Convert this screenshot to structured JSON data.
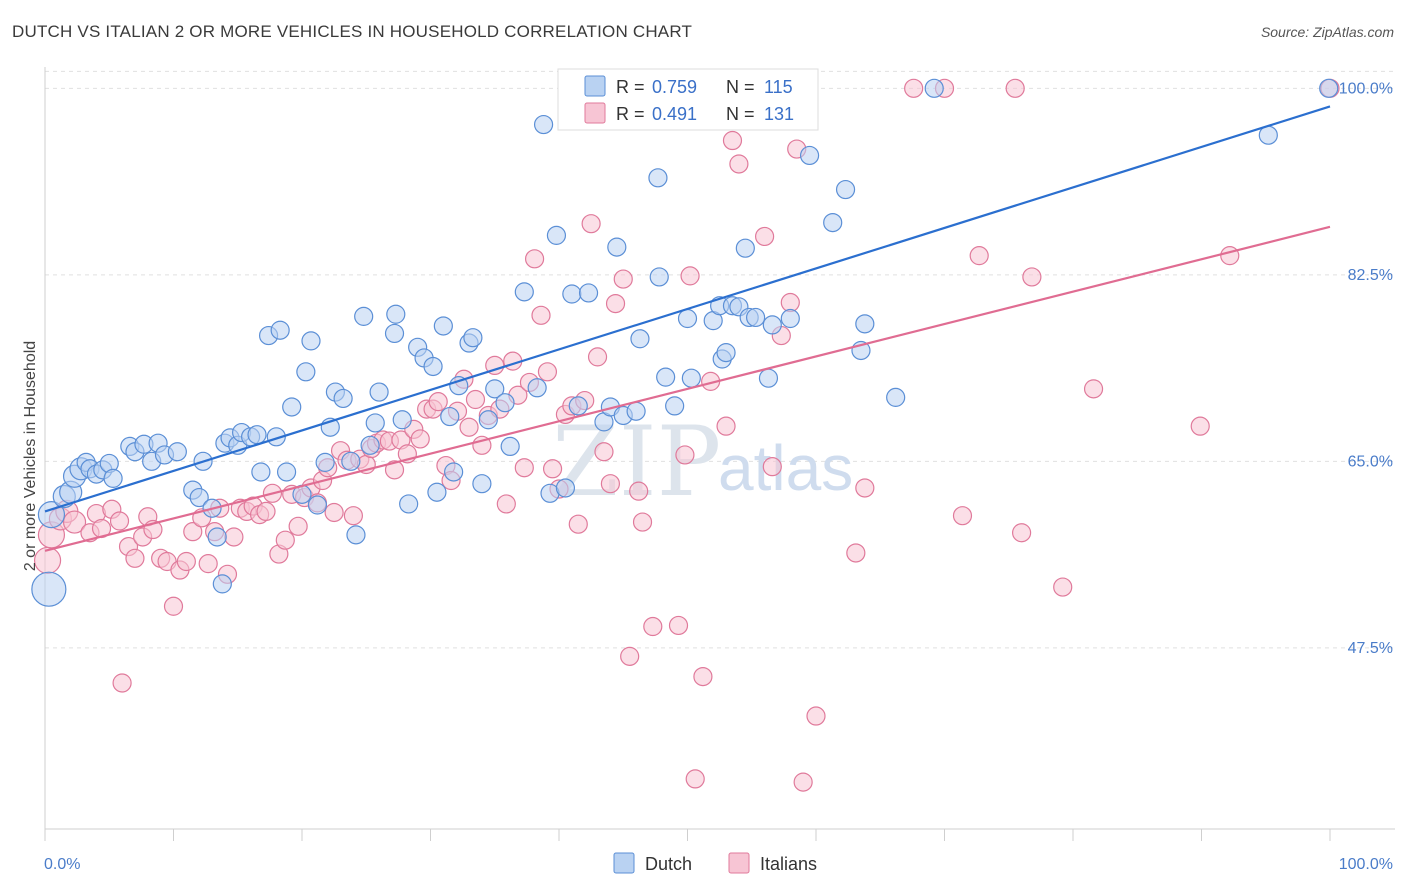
{
  "header": {
    "title": "DUTCH VS ITALIAN 2 OR MORE VEHICLES IN HOUSEHOLD CORRELATION CHART",
    "source": "Source: ZipAtlas.com"
  },
  "legend_top": {
    "rows": [
      {
        "r_label": "R =",
        "r_value": "0.759",
        "n_label": "N =",
        "n_value": "115"
      },
      {
        "r_label": "R =",
        "r_value": "0.491",
        "n_label": "N =",
        "n_value": "131"
      }
    ]
  },
  "legend_bottom": {
    "items": [
      "Dutch",
      "Italians"
    ]
  },
  "watermark": {
    "part1": "ZIP",
    "part2": "atlas"
  },
  "colors": {
    "dutch_fill": "#b9d2f2",
    "dutch_stroke": "#5b8fd6",
    "dutch_line": "#2b6fcf",
    "italian_fill": "#f7c5d4",
    "italian_stroke": "#e07a9b",
    "italian_line": "#e06c92",
    "grid": "#e0e0e0",
    "tick_text": "#4a7cc9"
  },
  "chart_data": {
    "type": "scatter",
    "title": "DUTCH VS ITALIAN 2 OR MORE VEHICLES IN HOUSEHOLD CORRELATION CHART",
    "xlabel": "",
    "ylabel": "2 or more Vehicles in Household",
    "xlim": [
      0,
      100
    ],
    "ylim": [
      30.5,
      102
    ],
    "x_tick_labels": [
      "0.0%",
      "100.0%"
    ],
    "y_ticks": [
      47.5,
      65.0,
      82.5,
      100.0
    ],
    "y_tick_labels": [
      "47.5%",
      "65.0%",
      "82.5%",
      "100.0%"
    ],
    "grid": true,
    "legend_position": "top-center",
    "series": [
      {
        "name": "Dutch",
        "r": 0.759,
        "n": 115,
        "trend": {
          "x": [
            0,
            100
          ],
          "y": [
            60.3,
            98.3
          ]
        },
        "points": [
          [
            0.3,
            53.0
          ],
          [
            0.5,
            60.0
          ],
          [
            1.5,
            61.7
          ],
          [
            2.0,
            62.1
          ],
          [
            2.3,
            63.6
          ],
          [
            2.8,
            64.3
          ],
          [
            3.2,
            64.9
          ],
          [
            3.5,
            64.3
          ],
          [
            4.0,
            63.8
          ],
          [
            4.5,
            64.2
          ],
          [
            5.0,
            64.8
          ],
          [
            5.3,
            63.4
          ],
          [
            6.6,
            66.4
          ],
          [
            7.0,
            65.9
          ],
          [
            7.7,
            66.6
          ],
          [
            8.3,
            65.0
          ],
          [
            8.8,
            66.7
          ],
          [
            9.3,
            65.6
          ],
          [
            10.3,
            65.9
          ],
          [
            11.5,
            62.3
          ],
          [
            12.0,
            61.6
          ],
          [
            12.3,
            65.0
          ],
          [
            13.0,
            60.6
          ],
          [
            13.4,
            57.9
          ],
          [
            13.8,
            53.5
          ],
          [
            14.0,
            66.7
          ],
          [
            14.4,
            67.2
          ],
          [
            15.0,
            66.5
          ],
          [
            15.3,
            67.7
          ],
          [
            16.0,
            67.3
          ],
          [
            16.5,
            67.5
          ],
          [
            16.8,
            64.0
          ],
          [
            17.4,
            76.8
          ],
          [
            18.0,
            67.3
          ],
          [
            18.3,
            77.3
          ],
          [
            18.8,
            64.0
          ],
          [
            19.2,
            70.1
          ],
          [
            20.0,
            61.9
          ],
          [
            20.3,
            73.4
          ],
          [
            20.7,
            76.3
          ],
          [
            21.2,
            60.9
          ],
          [
            21.8,
            64.9
          ],
          [
            22.2,
            68.2
          ],
          [
            22.6,
            71.5
          ],
          [
            23.2,
            70.9
          ],
          [
            23.8,
            65.0
          ],
          [
            24.2,
            58.1
          ],
          [
            24.8,
            78.6
          ],
          [
            25.3,
            66.5
          ],
          [
            25.7,
            68.6
          ],
          [
            26.0,
            71.5
          ],
          [
            27.2,
            77.0
          ],
          [
            27.3,
            78.8
          ],
          [
            27.8,
            68.9
          ],
          [
            28.3,
            61.0
          ],
          [
            29.0,
            75.7
          ],
          [
            29.5,
            74.7
          ],
          [
            30.2,
            73.9
          ],
          [
            30.5,
            62.1
          ],
          [
            31.0,
            77.7
          ],
          [
            31.5,
            69.2
          ],
          [
            31.8,
            64.0
          ],
          [
            32.2,
            72.1
          ],
          [
            33.0,
            76.1
          ],
          [
            33.3,
            76.6
          ],
          [
            34.0,
            62.9
          ],
          [
            34.5,
            68.9
          ],
          [
            35.0,
            71.8
          ],
          [
            35.8,
            70.5
          ],
          [
            36.2,
            66.4
          ],
          [
            37.3,
            80.9
          ],
          [
            38.3,
            71.9
          ],
          [
            38.8,
            96.6
          ],
          [
            39.3,
            62.0
          ],
          [
            39.8,
            86.2
          ],
          [
            40.5,
            62.5
          ],
          [
            41.0,
            80.7
          ],
          [
            41.5,
            70.2
          ],
          [
            42.3,
            80.8
          ],
          [
            43.5,
            68.7
          ],
          [
            44.0,
            70.1
          ],
          [
            44.5,
            85.1
          ],
          [
            45.0,
            69.3
          ],
          [
            46.0,
            69.7
          ],
          [
            46.3,
            76.5
          ],
          [
            47.7,
            91.6
          ],
          [
            47.8,
            82.3
          ],
          [
            48.3,
            72.9
          ],
          [
            49.0,
            70.2
          ],
          [
            50.0,
            78.4
          ],
          [
            50.3,
            72.8
          ],
          [
            52.0,
            78.2
          ],
          [
            52.5,
            79.6
          ],
          [
            52.7,
            74.6
          ],
          [
            53.0,
            75.2
          ],
          [
            53.5,
            79.6
          ],
          [
            54.0,
            79.5
          ],
          [
            54.5,
            85.0
          ],
          [
            54.8,
            78.5
          ],
          [
            55.3,
            78.5
          ],
          [
            56.3,
            72.8
          ],
          [
            56.6,
            77.8
          ],
          [
            58.0,
            78.4
          ],
          [
            59.5,
            93.7
          ],
          [
            61.3,
            87.4
          ],
          [
            62.3,
            90.5
          ],
          [
            63.5,
            75.4
          ],
          [
            63.8,
            77.9
          ],
          [
            66.2,
            71.0
          ],
          [
            69.2,
            100.0
          ],
          [
            95.2,
            95.6
          ],
          [
            99.9,
            100.0
          ]
        ]
      },
      {
        "name": "Italians",
        "r": 0.491,
        "n": 131,
        "trend": {
          "x": [
            0,
            100
          ],
          "y": [
            56.6,
            87.0
          ]
        },
        "points": [
          [
            0.2,
            55.7
          ],
          [
            0.5,
            58.1
          ],
          [
            1.2,
            59.6
          ],
          [
            1.7,
            60.3
          ],
          [
            2.3,
            59.3
          ],
          [
            3.5,
            58.3
          ],
          [
            4.0,
            60.1
          ],
          [
            4.4,
            58.7
          ],
          [
            5.2,
            60.5
          ],
          [
            5.8,
            59.4
          ],
          [
            6.0,
            44.2
          ],
          [
            6.5,
            57.0
          ],
          [
            7.0,
            55.9
          ],
          [
            7.6,
            57.9
          ],
          [
            8.0,
            59.8
          ],
          [
            8.4,
            58.6
          ],
          [
            9.0,
            55.9
          ],
          [
            9.5,
            55.6
          ],
          [
            10.0,
            51.4
          ],
          [
            10.5,
            54.8
          ],
          [
            11.0,
            55.6
          ],
          [
            11.5,
            58.4
          ],
          [
            12.2,
            59.7
          ],
          [
            12.7,
            55.4
          ],
          [
            13.2,
            58.4
          ],
          [
            13.6,
            60.6
          ],
          [
            14.2,
            54.4
          ],
          [
            14.7,
            57.9
          ],
          [
            15.2,
            60.6
          ],
          [
            15.7,
            60.3
          ],
          [
            16.2,
            60.8
          ],
          [
            16.7,
            60.0
          ],
          [
            17.2,
            60.3
          ],
          [
            17.7,
            62.0
          ],
          [
            18.2,
            56.3
          ],
          [
            18.7,
            57.6
          ],
          [
            19.2,
            61.9
          ],
          [
            19.7,
            58.9
          ],
          [
            20.2,
            61.6
          ],
          [
            20.7,
            62.5
          ],
          [
            21.2,
            61.1
          ],
          [
            21.6,
            63.2
          ],
          [
            22.0,
            64.4
          ],
          [
            22.5,
            60.2
          ],
          [
            23.0,
            66.0
          ],
          [
            23.5,
            65.1
          ],
          [
            24.0,
            59.9
          ],
          [
            24.5,
            65.2
          ],
          [
            25.0,
            64.7
          ],
          [
            25.4,
            66.2
          ],
          [
            25.8,
            66.7
          ],
          [
            26.3,
            67.0
          ],
          [
            26.8,
            66.9
          ],
          [
            27.2,
            64.2
          ],
          [
            27.7,
            67.0
          ],
          [
            28.2,
            65.7
          ],
          [
            28.7,
            68.0
          ],
          [
            29.2,
            67.1
          ],
          [
            29.7,
            69.9
          ],
          [
            30.2,
            69.9
          ],
          [
            30.6,
            70.6
          ],
          [
            31.2,
            64.6
          ],
          [
            31.6,
            63.2
          ],
          [
            32.1,
            69.7
          ],
          [
            32.6,
            72.7
          ],
          [
            33.0,
            68.2
          ],
          [
            33.5,
            70.8
          ],
          [
            34.0,
            66.5
          ],
          [
            34.5,
            69.3
          ],
          [
            35.0,
            74.0
          ],
          [
            35.4,
            69.9
          ],
          [
            35.9,
            61.0
          ],
          [
            36.4,
            74.4
          ],
          [
            36.8,
            71.2
          ],
          [
            37.3,
            64.4
          ],
          [
            37.7,
            72.4
          ],
          [
            38.1,
            84.0
          ],
          [
            38.6,
            78.7
          ],
          [
            39.1,
            73.4
          ],
          [
            39.5,
            64.3
          ],
          [
            40.0,
            62.4
          ],
          [
            40.5,
            69.4
          ],
          [
            41.0,
            70.2
          ],
          [
            41.5,
            59.1
          ],
          [
            42.0,
            70.7
          ],
          [
            42.5,
            87.3
          ],
          [
            43.0,
            74.8
          ],
          [
            43.5,
            65.9
          ],
          [
            44.0,
            62.9
          ],
          [
            44.4,
            79.8
          ],
          [
            45.0,
            82.1
          ],
          [
            45.5,
            46.7
          ],
          [
            46.2,
            62.2
          ],
          [
            46.5,
            59.3
          ],
          [
            47.3,
            49.5
          ],
          [
            49.3,
            49.6
          ],
          [
            49.8,
            65.6
          ],
          [
            50.2,
            82.4
          ],
          [
            50.6,
            35.2
          ],
          [
            51.2,
            44.8
          ],
          [
            51.8,
            72.5
          ],
          [
            53.0,
            68.3
          ],
          [
            53.5,
            95.1
          ],
          [
            54.0,
            92.9
          ],
          [
            54.8,
            97.7
          ],
          [
            55.3,
            100.0
          ],
          [
            56.0,
            86.1
          ],
          [
            56.6,
            64.5
          ],
          [
            57.3,
            76.8
          ],
          [
            58.0,
            79.9
          ],
          [
            58.5,
            94.3
          ],
          [
            59.0,
            34.9
          ],
          [
            60.0,
            41.1
          ],
          [
            63.1,
            56.4
          ],
          [
            63.8,
            62.5
          ],
          [
            67.6,
            100.0
          ],
          [
            70.0,
            100.0
          ],
          [
            71.4,
            59.9
          ],
          [
            72.7,
            84.3
          ],
          [
            75.5,
            100.0
          ],
          [
            76.0,
            58.3
          ],
          [
            76.8,
            82.3
          ],
          [
            79.2,
            53.2
          ],
          [
            81.6,
            71.8
          ],
          [
            89.9,
            68.3
          ],
          [
            92.2,
            84.3
          ],
          [
            100.0,
            100.0
          ]
        ]
      }
    ]
  }
}
